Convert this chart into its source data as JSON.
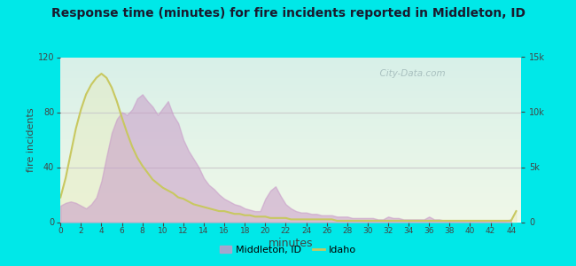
{
  "title": "Response time (minutes) for fire incidents reported in Middleton, ID",
  "xlabel": "minutes",
  "ylabel_left": "fire incidents",
  "background_outer": "#00e8e8",
  "background_top": "#f0f8e8",
  "background_bottom": "#d8f0e8",
  "xlim": [
    0,
    45
  ],
  "ylim_left": [
    0,
    120
  ],
  "ylim_right": [
    0,
    15000
  ],
  "yticks_left": [
    0,
    40,
    80,
    120
  ],
  "yticks_right": [
    0,
    5000,
    10000,
    15000
  ],
  "ytick_labels_right": [
    "0",
    "5k",
    "10k",
    "15k"
  ],
  "xticks": [
    0,
    2,
    4,
    6,
    8,
    10,
    12,
    14,
    16,
    18,
    20,
    22,
    24,
    26,
    28,
    30,
    32,
    34,
    36,
    38,
    40,
    42,
    44
  ],
  "middleton_color_fill": "#c899c8",
  "idaho_color": "#c8c860",
  "grid_color": "#e8e8e8",
  "watermark": "City-Data.com",
  "legend_middleton": "Middleton, ID",
  "legend_idaho": "Idaho",
  "title_color": "#1a1a2e",
  "tick_color": "#444444",
  "middleton_x": [
    0,
    0.5,
    1,
    1.5,
    2,
    2.5,
    3,
    3.5,
    4,
    4.5,
    5,
    5.5,
    6,
    6.5,
    7,
    7.5,
    8,
    8.5,
    9,
    9.5,
    10,
    10.5,
    11,
    11.5,
    12,
    12.5,
    13,
    13.5,
    14,
    14.5,
    15,
    15.5,
    16,
    16.5,
    17,
    17.5,
    18,
    18.5,
    19,
    19.5,
    20,
    20.5,
    21,
    21.5,
    22,
    22.5,
    23,
    23.5,
    24,
    24.5,
    25,
    25.5,
    26,
    26.5,
    27,
    27.5,
    28,
    28.5,
    29,
    29.5,
    30,
    30.5,
    31,
    31.5,
    32,
    32.5,
    33,
    33.5,
    34,
    34.5,
    35,
    35.5,
    36,
    36.5,
    37,
    37.5,
    38,
    38.5,
    39,
    39.5,
    40,
    40.5,
    41,
    41.5,
    42,
    42.5,
    43,
    43.5,
    44
  ],
  "middleton_y": [
    12,
    14,
    15,
    14,
    12,
    10,
    13,
    18,
    30,
    48,
    65,
    75,
    80,
    78,
    82,
    90,
    93,
    88,
    84,
    78,
    83,
    88,
    78,
    72,
    60,
    52,
    46,
    40,
    32,
    27,
    24,
    20,
    17,
    15,
    13,
    12,
    10,
    9,
    8,
    8,
    17,
    23,
    26,
    19,
    13,
    10,
    8,
    7,
    7,
    6,
    6,
    5,
    5,
    5,
    4,
    4,
    4,
    3,
    3,
    3,
    3,
    3,
    2,
    2,
    4,
    3,
    3,
    2,
    2,
    2,
    2,
    2,
    4,
    2,
    2,
    1,
    1,
    1,
    1,
    1,
    1,
    1,
    1,
    1,
    1,
    1,
    1,
    1,
    2
  ],
  "idaho_x": [
    0,
    0.5,
    1,
    1.5,
    2,
    2.5,
    3,
    3.5,
    4,
    4.5,
    5,
    5.5,
    6,
    6.5,
    7,
    7.5,
    8,
    8.5,
    9,
    9.5,
    10,
    10.5,
    11,
    11.5,
    12,
    12.5,
    13,
    13.5,
    14,
    14.5,
    15,
    15.5,
    16,
    16.5,
    17,
    17.5,
    18,
    18.5,
    19,
    19.5,
    20,
    20.5,
    21,
    21.5,
    22,
    22.5,
    23,
    23.5,
    24,
    24.5,
    25,
    25.5,
    26,
    26.5,
    27,
    27.5,
    28,
    28.5,
    29,
    29.5,
    30,
    35,
    40,
    44,
    44.5
  ],
  "idaho_y": [
    18,
    32,
    50,
    68,
    82,
    93,
    100,
    105,
    108,
    105,
    98,
    88,
    76,
    65,
    55,
    47,
    41,
    36,
    31,
    28,
    25,
    23,
    21,
    18,
    17,
    15,
    13,
    12,
    11,
    10,
    9,
    8,
    8,
    7,
    6,
    6,
    5,
    5,
    4,
    4,
    4,
    3,
    3,
    3,
    3,
    2,
    2,
    2,
    2,
    2,
    2,
    2,
    2,
    2,
    1,
    1,
    1,
    1,
    1,
    1,
    1,
    1,
    1,
    1,
    8
  ]
}
